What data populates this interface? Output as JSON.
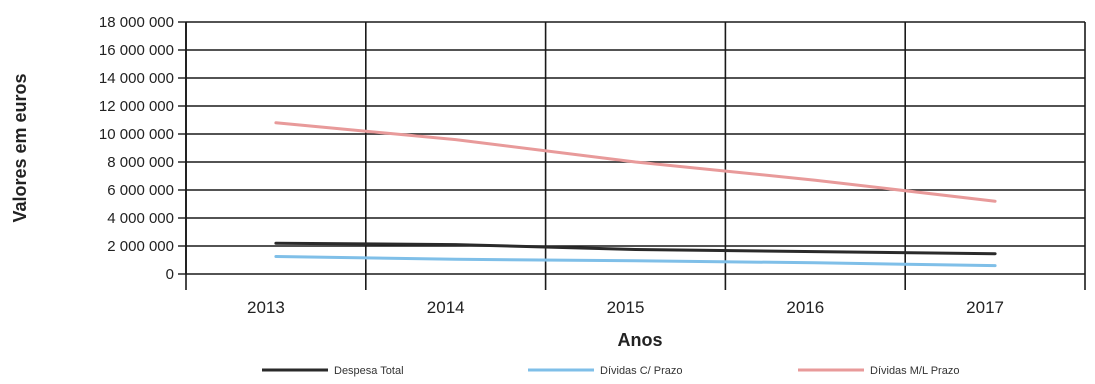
{
  "chart_data": {
    "type": "line",
    "title": "",
    "xlabel": "Anos",
    "ylabel": "Valores em euros",
    "categories": [
      "2013",
      "2014",
      "2015",
      "2016",
      "2017"
    ],
    "y_ticks": [
      "0",
      "2 000 000",
      "4 000 000",
      "6 000 000",
      "8 000 000",
      "10 000 000",
      "12 000 000",
      "14 000 000",
      "16 000 000",
      "18 000 000"
    ],
    "ylim": [
      0,
      18000000
    ],
    "grid": true,
    "legend_position": "bottom",
    "series": [
      {
        "name": "Despesa Total",
        "color": "#2a2a2a",
        "values": [
          2200000,
          2100000,
          1750000,
          1600000,
          1450000
        ]
      },
      {
        "name": "Dívidas C/ Prazo",
        "color": "#7fbfe8",
        "values": [
          1250000,
          1050000,
          950000,
          800000,
          600000
        ]
      },
      {
        "name": "Dívidas M/L Prazo",
        "color": "#e89a9a",
        "values": [
          10800000,
          9600000,
          8000000,
          6700000,
          5200000
        ]
      }
    ]
  }
}
